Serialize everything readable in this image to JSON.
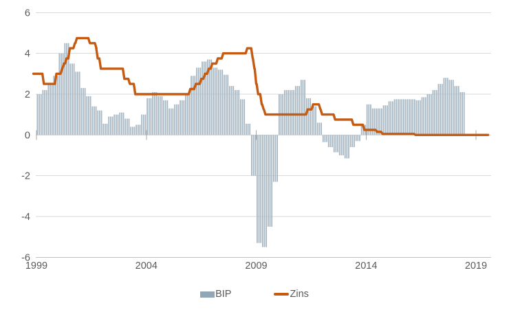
{
  "chart_data": {
    "type": "combo",
    "title": "",
    "x_axis": {
      "ticks": [
        1999,
        2004,
        2009,
        2014,
        2019
      ],
      "labels": [
        "1999",
        "2004",
        "2009",
        "2014",
        "2019"
      ],
      "range_years": [
        1999,
        2019.7
      ]
    },
    "y_axis": {
      "ticks": [
        6,
        4,
        2,
        0,
        -2,
        -4,
        -6
      ],
      "labels": [
        "6",
        "4",
        "2",
        "0",
        "-2",
        "-4",
        "-6"
      ],
      "range": [
        -6,
        6
      ],
      "gridlines": true
    },
    "series": [
      {
        "name": "BIP",
        "type": "bar",
        "frequency": "quarterly",
        "bars_per_quarter": 3,
        "start": "1999-Q1",
        "end": "2018-Q2",
        "unit": "percent",
        "color": "#a5b5c1",
        "values": [
          2.0,
          2.2,
          2.5,
          2.9,
          4.0,
          4.5,
          3.5,
          3.1,
          2.3,
          1.9,
          1.4,
          1.2,
          0.55,
          0.9,
          1.0,
          1.1,
          0.8,
          0.4,
          0.5,
          1.0,
          1.8,
          2.1,
          1.9,
          1.7,
          1.3,
          1.5,
          1.7,
          2.0,
          2.9,
          3.3,
          3.6,
          3.7,
          3.3,
          3.2,
          2.95,
          2.4,
          2.2,
          1.75,
          0.55,
          -2.0,
          -5.3,
          -5.5,
          -4.5,
          -2.3,
          2.0,
          2.2,
          2.2,
          2.4,
          2.7,
          1.8,
          1.4,
          0.6,
          -0.35,
          -0.6,
          -0.85,
          -1.0,
          -1.15,
          -0.6,
          -0.3,
          0.5,
          1.5,
          1.3,
          1.3,
          1.45,
          1.65,
          1.75,
          1.75,
          1.75,
          1.75,
          1.7,
          1.85,
          2.0,
          2.2,
          2.5,
          2.8,
          2.7,
          2.4,
          2.1
        ]
      },
      {
        "name": "Zins",
        "type": "step-line",
        "unit": "percent",
        "color": "#c55a11",
        "stroke_width": 3.4,
        "points": [
          [
            1998.86,
            3.0
          ],
          [
            1999.27,
            2.5
          ],
          [
            1999.84,
            3.0
          ],
          [
            2000.1,
            3.25
          ],
          [
            2000.18,
            3.5
          ],
          [
            2000.3,
            3.75
          ],
          [
            2000.45,
            4.25
          ],
          [
            2000.68,
            4.5
          ],
          [
            2000.77,
            4.75
          ],
          [
            2001.36,
            4.5
          ],
          [
            2001.66,
            4.25
          ],
          [
            2001.72,
            3.75
          ],
          [
            2001.86,
            3.25
          ],
          [
            2002.93,
            2.75
          ],
          [
            2003.18,
            2.5
          ],
          [
            2003.43,
            2.0
          ],
          [
            2005.93,
            2.25
          ],
          [
            2006.18,
            2.5
          ],
          [
            2006.43,
            2.75
          ],
          [
            2006.6,
            3.0
          ],
          [
            2006.77,
            3.25
          ],
          [
            2006.93,
            3.5
          ],
          [
            2007.18,
            3.75
          ],
          [
            2007.43,
            4.0
          ],
          [
            2008.52,
            4.25
          ],
          [
            2008.77,
            3.75
          ],
          [
            2008.85,
            3.25
          ],
          [
            2008.93,
            2.5
          ],
          [
            2009.02,
            2.0
          ],
          [
            2009.18,
            1.5
          ],
          [
            2009.27,
            1.25
          ],
          [
            2009.35,
            1.0
          ],
          [
            2011.27,
            1.25
          ],
          [
            2011.52,
            1.5
          ],
          [
            2011.85,
            1.25
          ],
          [
            2011.93,
            1.0
          ],
          [
            2012.52,
            0.75
          ],
          [
            2013.35,
            0.5
          ],
          [
            2013.85,
            0.25
          ],
          [
            2014.43,
            0.15
          ],
          [
            2014.68,
            0.05
          ],
          [
            2016.18,
            0.0
          ]
        ],
        "end_x": 2019.55
      }
    ],
    "legend": {
      "position": "bottom-center",
      "items": [
        {
          "label": "BIP",
          "type": "bar",
          "color": "#92a7b5"
        },
        {
          "label": "Zins",
          "type": "line",
          "color": "#c55a11"
        }
      ]
    }
  },
  "colors": {
    "background": "#ffffff",
    "gridline": "#d9d9d9",
    "bottom_axis_line": "#c0c0c0",
    "zero_axis_tick": "#a8a8a8",
    "axis_text": "#595959"
  }
}
